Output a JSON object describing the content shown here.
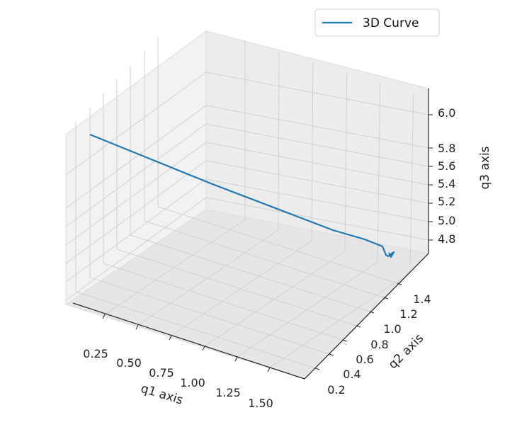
{
  "chart_data": {
    "type": "line",
    "projection": "3d",
    "title": "",
    "xlabel": "q1 axis",
    "ylabel": "q2 axis",
    "zlabel": "q3 axis",
    "x_ticks": [
      "0.25",
      "0.50",
      "0.75",
      "1.00",
      "1.25",
      "1.50"
    ],
    "y_ticks": [
      "0.2",
      "0.4",
      "0.6",
      "0.8",
      "1.0",
      "1.2",
      "1.4"
    ],
    "z_ticks": [
      "4.8",
      "5.0",
      "5.2",
      "5.4",
      "5.6",
      "5.8",
      "6.0"
    ],
    "grid": true,
    "legend": {
      "position": "top-right",
      "entries": [
        "3D Curve"
      ]
    },
    "series": [
      {
        "name": "3D Curve",
        "color": "#1f77b4",
        "points_note": "sampled approx along the visible curve",
        "x": [
          0.25,
          0.55,
          0.85,
          1.15,
          1.4,
          1.52,
          1.56,
          1.58,
          1.58
        ],
        "y": [
          1.45,
          1.38,
          1.3,
          1.22,
          1.15,
          1.1,
          1.05,
          1.02,
          1.0
        ],
        "z": [
          6.05,
          5.85,
          5.65,
          5.45,
          5.25,
          5.05,
          4.9,
          4.75,
          4.62
        ]
      }
    ]
  }
}
